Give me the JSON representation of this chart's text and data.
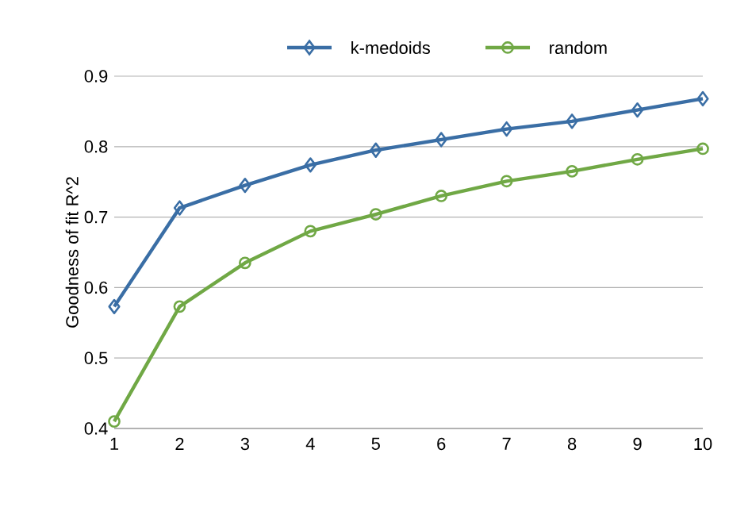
{
  "chart_data": {
    "type": "line",
    "ylabel": "Goodness of fit R^2",
    "x": [
      1,
      2,
      3,
      4,
      5,
      6,
      7,
      8,
      9,
      10
    ],
    "series": [
      {
        "name": "k-medoids",
        "color": "#3a6ea5",
        "marker": "diamond",
        "values": [
          0.573,
          0.713,
          0.745,
          0.774,
          0.795,
          0.81,
          0.825,
          0.836,
          0.852,
          0.868
        ]
      },
      {
        "name": "random",
        "color": "#70a845",
        "marker": "circle",
        "values": [
          0.41,
          0.573,
          0.635,
          0.68,
          0.704,
          0.73,
          0.751,
          0.765,
          0.782,
          0.797
        ]
      }
    ],
    "xlim": [
      1,
      10
    ],
    "xticks": [
      1,
      2,
      3,
      4,
      5,
      6,
      7,
      8,
      9,
      10
    ],
    "ylim": [
      0.4,
      0.9
    ],
    "yticks": [
      0.4,
      0.5,
      0.6,
      0.7,
      0.8,
      0.9
    ],
    "grid": "y",
    "legend": "top",
    "line_style": "solid"
  }
}
